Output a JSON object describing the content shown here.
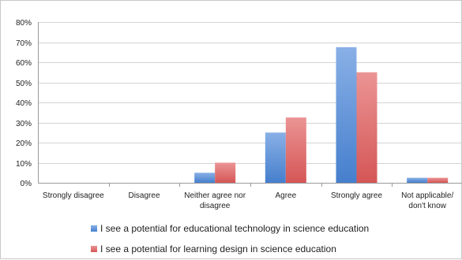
{
  "chart_data": {
    "type": "bar",
    "title": "",
    "xlabel": "",
    "ylabel": "",
    "ylim": [
      0,
      80
    ],
    "ytick_step": 10,
    "y_unit_suffix": "%",
    "grid": true,
    "legend_position": "bottom",
    "categories": [
      [
        "Strongly disagree"
      ],
      [
        "Disagree"
      ],
      [
        "Neither agree nor",
        "disagree"
      ],
      [
        "Agree"
      ],
      [
        "Strongly agree"
      ],
      [
        "Not applicable/",
        "don't know"
      ]
    ],
    "series": [
      {
        "name": "I see a potential for educational technology in science education",
        "color": "#4a86d8",
        "values": [
          0,
          0,
          5,
          25,
          67.5,
          2.5
        ]
      },
      {
        "name": "I see a potential for learning design in science education",
        "color": "#e05a5a",
        "values": [
          0,
          0,
          10,
          32.5,
          55,
          2.5
        ]
      }
    ]
  }
}
